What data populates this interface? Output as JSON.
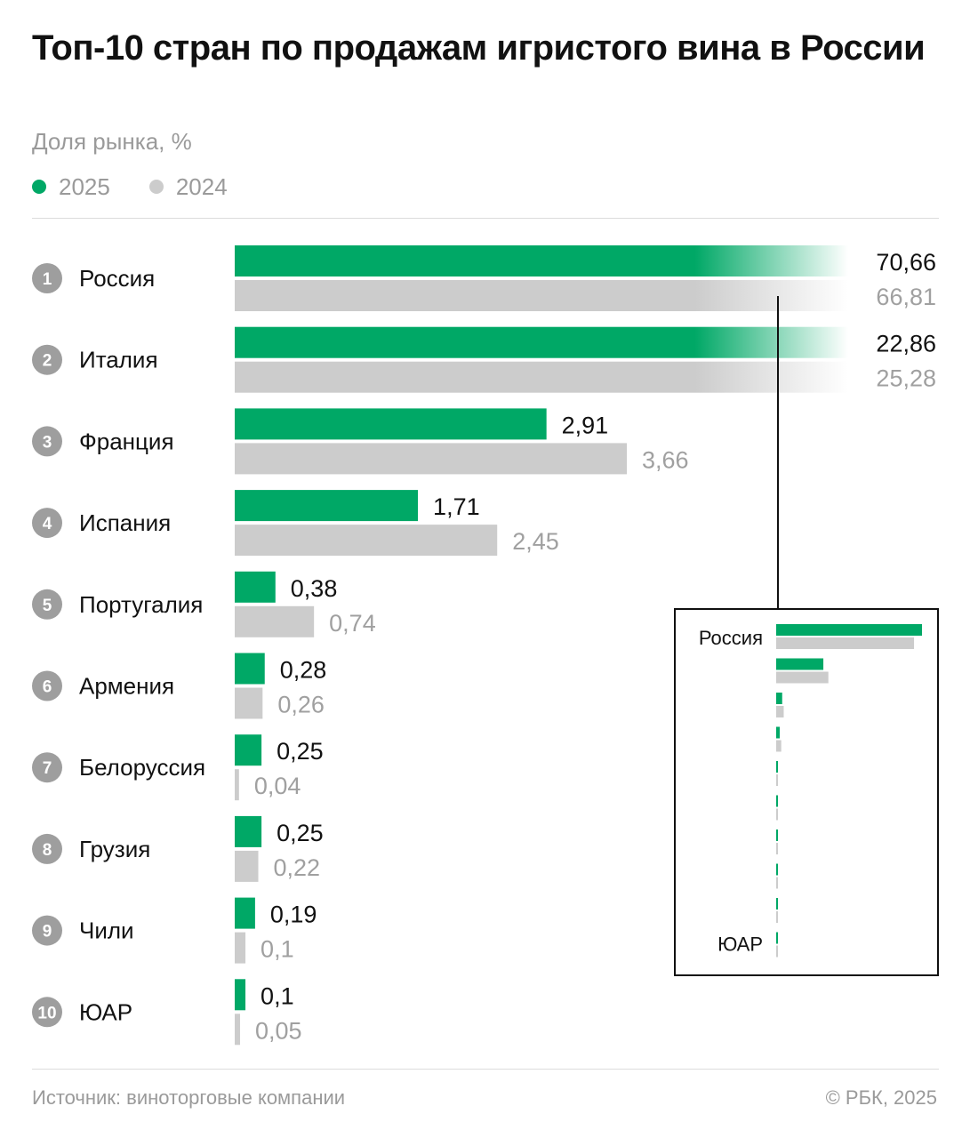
{
  "header": {
    "title": "Топ-10 стран по продажам игристого вина в России",
    "subtitle": "Доля рынка, %"
  },
  "legend": [
    {
      "label": "2025",
      "color": "#00a866"
    },
    {
      "label": "2024",
      "color": "#cccccc"
    }
  ],
  "chart_data": {
    "type": "bar",
    "orientation": "horizontal",
    "title": "Топ-10 стран по продажам игристого вина в России",
    "subtitle": "Доля рынка, %",
    "categories": [
      "Россия",
      "Италия",
      "Франция",
      "Испания",
      "Португалия",
      "Армения",
      "Белоруссия",
      "Грузия",
      "Чили",
      "ЮАР"
    ],
    "ranks": [
      "1",
      "2",
      "3",
      "4",
      "5",
      "6",
      "7",
      "8",
      "9",
      "10"
    ],
    "series": [
      {
        "name": "2025",
        "color": "#00a866",
        "values": [
          70.66,
          22.86,
          2.91,
          1.71,
          0.38,
          0.28,
          0.25,
          0.25,
          0.19,
          0.1
        ],
        "labels": [
          "70,66",
          "22,86",
          "2,91",
          "1,71",
          "0,38",
          "0,28",
          "0,25",
          "0,25",
          "0,19",
          "0,1"
        ]
      },
      {
        "name": "2024",
        "color": "#cccccc",
        "values": [
          66.81,
          25.28,
          3.66,
          2.45,
          0.74,
          0.26,
          0.04,
          0.22,
          0.1,
          0.05
        ],
        "labels": [
          "66,81",
          "25,28",
          "3,66",
          "2,45",
          "0,74",
          "0,26",
          "0,04",
          "0,22",
          "0,1",
          "0,05"
        ]
      }
    ],
    "main_scale_max": 4.0,
    "truncated_categories": [
      "Россия",
      "Италия"
    ],
    "inset": {
      "first_label": "Россия",
      "last_label": "ЮАР",
      "scale_max": 70.66
    },
    "legend_position": "top-left",
    "grid": false
  },
  "footer": {
    "source": "Источник: виноторговые компании",
    "copyright": "© РБК, 2025"
  },
  "colors": {
    "green": "#00a866",
    "grey_bar": "#cccccc",
    "rank_circle": "#9e9e9e",
    "value_2025": "#111111",
    "value_2024": "#a0a0a0"
  }
}
